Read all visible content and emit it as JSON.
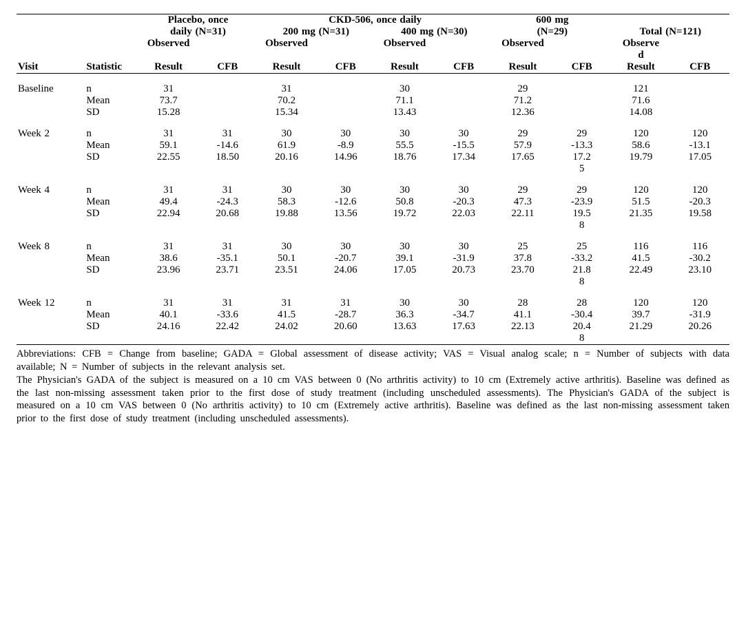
{
  "headers": {
    "group1_label": "Placebo, once",
    "group1_sub": "daily (N=31)",
    "group2_label": "CKD-506, once daily",
    "group2_200": "200 mg (N=31)",
    "group2_400": "400 mg (N=30)",
    "group2_600a": "600 mg",
    "group2_600b": "(N=29)",
    "total_label": "Total (N=121)",
    "visit": "Visit",
    "statistic": "Statistic",
    "obs_result_2line_a": "Observed",
    "obs_result_2line_b": "Result",
    "obs_result_3line_a": "Observe",
    "obs_result_3line_b": "d",
    "obs_result_3line_c": "Result",
    "cfb": "CFB"
  },
  "stats": {
    "n": "n",
    "mean": "Mean",
    "sd": "SD"
  },
  "visits": [
    {
      "name": "Baseline",
      "rows": [
        {
          "stat": "n",
          "v": [
            "31",
            "",
            "31",
            "",
            "30",
            "",
            "29",
            "",
            "121",
            ""
          ]
        },
        {
          "stat": "mean",
          "v": [
            "73.7",
            "",
            "70.2",
            "",
            "71.1",
            "",
            "71.2",
            "",
            "71.6",
            ""
          ]
        },
        {
          "stat": "sd",
          "v": [
            "15.28",
            "",
            "15.34",
            "",
            "13.43",
            "",
            "12.36",
            "",
            "14.08",
            ""
          ]
        }
      ]
    },
    {
      "name": "Week 2",
      "rows": [
        {
          "stat": "n",
          "v": [
            "31",
            "31",
            "30",
            "30",
            "30",
            "30",
            "29",
            "29",
            "120",
            "120"
          ]
        },
        {
          "stat": "mean",
          "v": [
            "59.1",
            "-14.6",
            "61.9",
            "-8.9",
            "55.5",
            "-15.5",
            "57.9",
            "-13.3",
            "58.6",
            "-13.1"
          ]
        },
        {
          "stat": "sd",
          "v": [
            "22.55",
            "18.50",
            "20.16",
            "14.96",
            "18.76",
            "17.34",
            "17.65",
            "17.2",
            "19.79",
            "17.05"
          ]
        }
      ],
      "sd_wrap_col": 7,
      "sd_wrap_val": "5"
    },
    {
      "name": "Week 4",
      "rows": [
        {
          "stat": "n",
          "v": [
            "31",
            "31",
            "30",
            "30",
            "30",
            "30",
            "29",
            "29",
            "120",
            "120"
          ]
        },
        {
          "stat": "mean",
          "v": [
            "49.4",
            "-24.3",
            "58.3",
            "-12.6",
            "50.8",
            "-20.3",
            "47.3",
            "-23.9",
            "51.5",
            "-20.3"
          ]
        },
        {
          "stat": "sd",
          "v": [
            "22.94",
            "20.68",
            "19.88",
            "13.56",
            "19.72",
            "22.03",
            "22.11",
            "19.5",
            "21.35",
            "19.58"
          ]
        }
      ],
      "sd_wrap_col": 7,
      "sd_wrap_val": "8"
    },
    {
      "name": "Week 8",
      "rows": [
        {
          "stat": "n",
          "v": [
            "31",
            "31",
            "30",
            "30",
            "30",
            "30",
            "25",
            "25",
            "116",
            "116"
          ]
        },
        {
          "stat": "mean",
          "v": [
            "38.6",
            "-35.1",
            "50.1",
            "-20.7",
            "39.1",
            "-31.9",
            "37.8",
            "-33.2",
            "41.5",
            "-30.2"
          ]
        },
        {
          "stat": "sd",
          "v": [
            "23.96",
            "23.71",
            "23.51",
            "24.06",
            "17.05",
            "20.73",
            "23.70",
            "21.8",
            "22.49",
            "23.10"
          ]
        }
      ],
      "sd_wrap_col": 7,
      "sd_wrap_val": "8"
    },
    {
      "name": "Week 12",
      "rows": [
        {
          "stat": "n",
          "v": [
            "31",
            "31",
            "31",
            "31",
            "30",
            "30",
            "28",
            "28",
            "120",
            "120"
          ]
        },
        {
          "stat": "mean",
          "v": [
            "40.1",
            "-33.6",
            "41.5",
            "-28.7",
            "36.3",
            "-34.7",
            "41.1",
            "-30.4",
            "39.7",
            "-31.9"
          ]
        },
        {
          "stat": "sd",
          "v": [
            "24.16",
            "22.42",
            "24.02",
            "20.60",
            "13.63",
            "17.63",
            "22.13",
            "20.4",
            "21.29",
            "20.26"
          ]
        }
      ],
      "sd_wrap_col": 7,
      "sd_wrap_val": "8"
    }
  ],
  "footnote": "Abbreviations: CFB = Change from baseline; GADA = Global assessment of disease activity; VAS = Visual analog scale; n = Number of subjects with data available; N = Number of subjects in the relevant analysis set.\nThe Physician's GADA of the subject is measured on a 10 cm VAS between 0 (No arthritis activity) to 10 cm (Extremely active arthritis). Baseline was defined as the last non-missing assessment taken prior to the first dose of study treatment (including unscheduled assessments). The Physician's GADA of the subject is measured on a 10 cm VAS between 0 (No arthritis activity) to 10 cm (Extremely active arthritis). Baseline was defined as the last non-missing assessment taken prior to the first dose of study treatment (including unscheduled assessments).",
  "style": {
    "font_family": "Times New Roman",
    "font_size_pt": 11,
    "text_color": "#000000",
    "background": "#ffffff",
    "border_color": "#000000"
  }
}
